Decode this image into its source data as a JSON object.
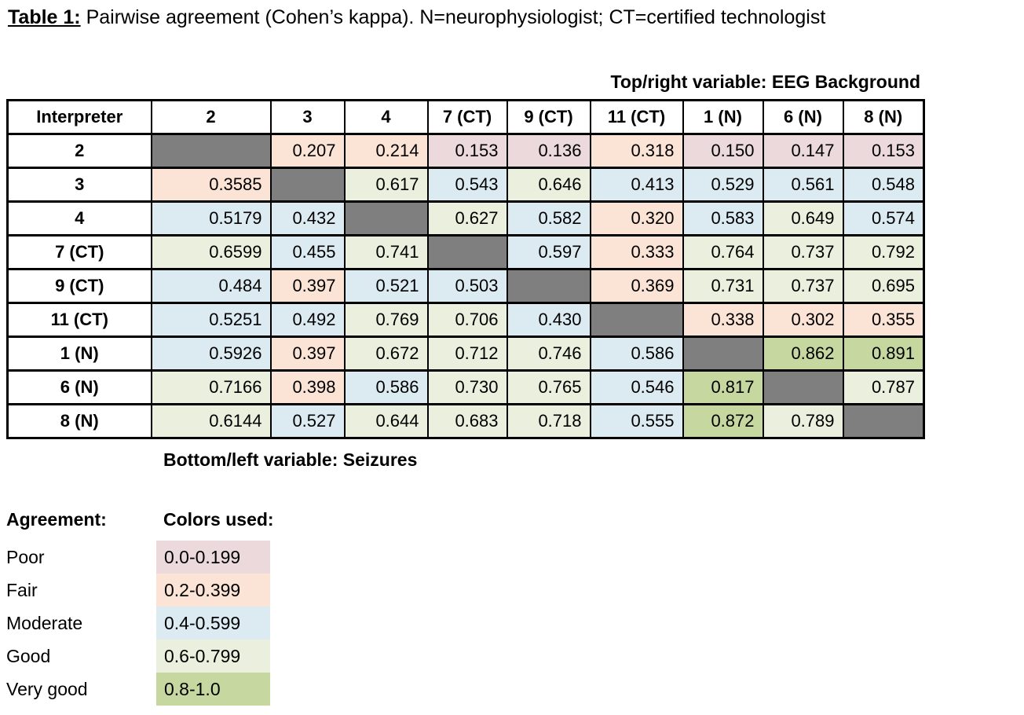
{
  "caption": {
    "label": "Table 1:",
    "text": " Pairwise agreement (Cohen’s kappa). N=neurophysiologist; CT=certified technologist"
  },
  "top_note": "Top/right variable: EEG Background",
  "bottom_note": "Bottom/left variable: Seizures",
  "table": {
    "header": [
      "Interpreter",
      "2",
      "3",
      "4",
      "7 (CT)",
      "9 (CT)",
      "11 (CT)",
      "1 (N)",
      "6 (N)",
      "8 (N)"
    ],
    "diagonal_color": "#7f7f7f",
    "rows": [
      {
        "label": "2",
        "values": [
          null,
          "0.207",
          "0.214",
          "0.153",
          "0.136",
          "0.318",
          "0.150",
          "0.147",
          "0.153"
        ]
      },
      {
        "label": "3",
        "values": [
          "0.3585",
          null,
          "0.617",
          "0.543",
          "0.646",
          "0.413",
          "0.529",
          "0.561",
          "0.548"
        ]
      },
      {
        "label": "4",
        "values": [
          "0.5179",
          "0.432",
          null,
          "0.627",
          "0.582",
          "0.320",
          "0.583",
          "0.649",
          "0.574"
        ]
      },
      {
        "label": "7 (CT)",
        "values": [
          "0.6599",
          "0.455",
          "0.741",
          null,
          "0.597",
          "0.333",
          "0.764",
          "0.737",
          "0.792"
        ]
      },
      {
        "label": "9 (CT)",
        "values": [
          "0.484",
          "0.397",
          "0.521",
          "0.503",
          null,
          "0.369",
          "0.731",
          "0.737",
          "0.695"
        ]
      },
      {
        "label": "11 (CT)",
        "values": [
          "0.5251",
          "0.492",
          "0.769",
          "0.706",
          "0.430",
          null,
          "0.338",
          "0.302",
          "0.355"
        ]
      },
      {
        "label": "1 (N)",
        "values": [
          "0.5926",
          "0.397",
          "0.672",
          "0.712",
          "0.746",
          "0.586",
          null,
          "0.862",
          "0.891"
        ]
      },
      {
        "label": "6 (N)",
        "values": [
          "0.7166",
          "0.398",
          "0.586",
          "0.730",
          "0.765",
          "0.546",
          "0.817",
          null,
          "0.787"
        ]
      },
      {
        "label": "8 (N)",
        "values": [
          "0.6144",
          "0.527",
          "0.644",
          "0.683",
          "0.718",
          "0.555",
          "0.872",
          "0.789",
          null
        ]
      }
    ]
  },
  "legend": {
    "agreement_header": "Agreement:",
    "colors_header": "Colors used:",
    "items": [
      {
        "label": "Poor",
        "range": "0.0-0.199",
        "color": "#ecd9dc",
        "min": 0.0
      },
      {
        "label": "Fair",
        "range": "0.2-0.399",
        "color": "#fbe4d5",
        "min": 0.2
      },
      {
        "label": "Moderate",
        "range": "0.4-0.599",
        "color": "#dcebf2",
        "min": 0.4
      },
      {
        "label": "Good",
        "range": "0.6-0.799",
        "color": "#eaf0dd",
        "min": 0.6
      },
      {
        "label": "Very good",
        "range": "0.8-1.0",
        "color": "#c6d7a0",
        "min": 0.8
      }
    ]
  }
}
